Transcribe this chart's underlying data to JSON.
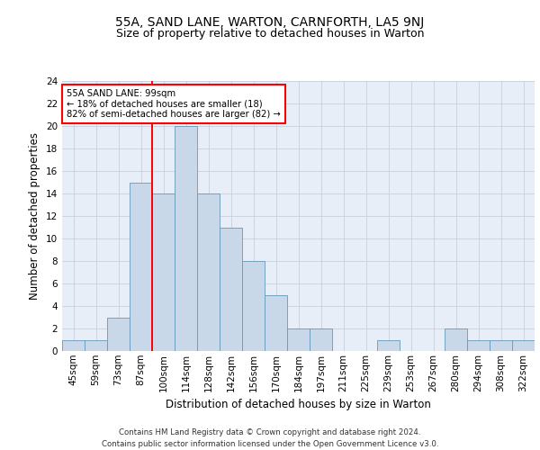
{
  "title_line1": "55A, SAND LANE, WARTON, CARNFORTH, LA5 9NJ",
  "title_line2": "Size of property relative to detached houses in Warton",
  "xlabel": "Distribution of detached houses by size in Warton",
  "ylabel": "Number of detached properties",
  "bar_labels": [
    "45sqm",
    "59sqm",
    "73sqm",
    "87sqm",
    "100sqm",
    "114sqm",
    "128sqm",
    "142sqm",
    "156sqm",
    "170sqm",
    "184sqm",
    "197sqm",
    "211sqm",
    "225sqm",
    "239sqm",
    "253sqm",
    "267sqm",
    "280sqm",
    "294sqm",
    "308sqm",
    "322sqm"
  ],
  "bar_values": [
    1,
    1,
    3,
    15,
    14,
    20,
    14,
    11,
    8,
    5,
    2,
    2,
    0,
    0,
    1,
    0,
    0,
    2,
    1,
    1,
    1
  ],
  "bar_color": "#c8d8e8",
  "bar_edgecolor": "#6699bb",
  "subject_bar_index": 4,
  "annotation_line1": "55A SAND LANE: 99sqm",
  "annotation_line2": "← 18% of detached houses are smaller (18)",
  "annotation_line3": "82% of semi-detached houses are larger (82) →",
  "annotation_box_color": "white",
  "annotation_box_edgecolor": "red",
  "vline_color": "red",
  "ylim": [
    0,
    24
  ],
  "yticks": [
    0,
    2,
    4,
    6,
    8,
    10,
    12,
    14,
    16,
    18,
    20,
    22,
    24
  ],
  "grid_color": "#c8d0dc",
  "background_color": "#e8eef8",
  "footer_line1": "Contains HM Land Registry data © Crown copyright and database right 2024.",
  "footer_line2": "Contains public sector information licensed under the Open Government Licence v3.0.",
  "title1_fontsize": 10,
  "title2_fontsize": 9,
  "xlabel_fontsize": 8.5,
  "ylabel_fontsize": 8.5,
  "tick_fontsize": 7.5,
  "footer_fontsize": 6.2
}
